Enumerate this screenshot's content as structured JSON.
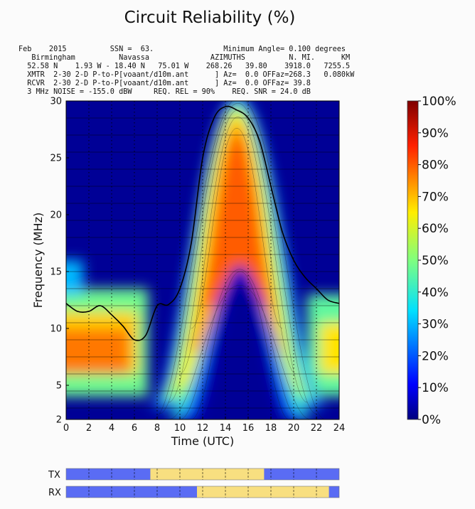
{
  "chart_data": {
    "type": "heatmap",
    "title": "Circuit Reliability (%)",
    "header_lines": [
      "Feb    2015          SSN =  63.                Minimum Angle= 0.100 degrees",
      "   Birmingham          Navassa              AZIMUTHS          N. MI.      KM",
      "  52.58 N    1.93 W - 18.40 N   75.01 W    268.26   39.80    3918.0   7255.5",
      "  XMTR  2-30 2-D P-to-P[voaant/d10m.ant      ] Az=  0.0 OFFaz=268.3   0.080kW",
      "  RCVR  2-30 2-D P-to-P[voaant/d10m.ant      ] Az=  0.0 OFFaz= 39.8",
      "  3 MHz NOISE = -155.0 dBW     REQ. REL = 90%    REQ. SNR = 24.0 dB"
    ],
    "xlabel": "Time (UTC)",
    "ylabel": "Frequency (MHz)",
    "xlim": [
      0,
      24
    ],
    "ylim": [
      2,
      30
    ],
    "x_ticks": [
      "0",
      "2",
      "4",
      "6",
      "8",
      "10",
      "12",
      "14",
      "16",
      "18",
      "20",
      "22",
      "24"
    ],
    "y_ticks": [
      "2",
      "5",
      "10",
      "15",
      "20",
      "25",
      "30"
    ],
    "y_tick_values": [
      2,
      5,
      10,
      15,
      20,
      25,
      30
    ],
    "colorbar": {
      "min": 0,
      "max": 100,
      "tick_labels": [
        "0%",
        "10%",
        "20%",
        "30%",
        "40%",
        "50%",
        "60%",
        "70%",
        "80%",
        "90%",
        "100%"
      ],
      "tick_values": [
        0,
        10,
        20,
        30,
        40,
        50,
        60,
        70,
        80,
        90,
        100
      ]
    },
    "hours": [
      0,
      1,
      2,
      3,
      4,
      5,
      6,
      7,
      8,
      9,
      10,
      11,
      12,
      13,
      14,
      15,
      16,
      17,
      18,
      19,
      20,
      21,
      22,
      23,
      24
    ],
    "muf_curve_mhz": [
      12.2,
      11.5,
      11.5,
      12.0,
      11.2,
      10.2,
      9.0,
      9.4,
      12.0,
      12.1,
      13.5,
      17.5,
      25.0,
      28.5,
      29.5,
      29.2,
      28.5,
      26.5,
      22.5,
      18.5,
      16.0,
      14.5,
      13.5,
      12.5,
      12.2
    ],
    "day_hump": {
      "start_hour": 8.5,
      "end_hour": 21.5,
      "peak_mhz": 29.5,
      "core_reliability_pct": 80
    },
    "night_band": {
      "freq_range_mhz": [
        6,
        10
      ],
      "reliability_pct": 77,
      "active_hours": [
        [
          0,
          7
        ],
        [
          22,
          24
        ]
      ]
    },
    "daylight_bars": {
      "tx_label": "TX",
      "rx_label": "RX",
      "tx_day_hours": [
        7.4,
        17.4
      ],
      "rx_day_hours": [
        11.5,
        23.1
      ],
      "day_color": "#f8df80",
      "night_color": "#5a6cf4"
    }
  }
}
